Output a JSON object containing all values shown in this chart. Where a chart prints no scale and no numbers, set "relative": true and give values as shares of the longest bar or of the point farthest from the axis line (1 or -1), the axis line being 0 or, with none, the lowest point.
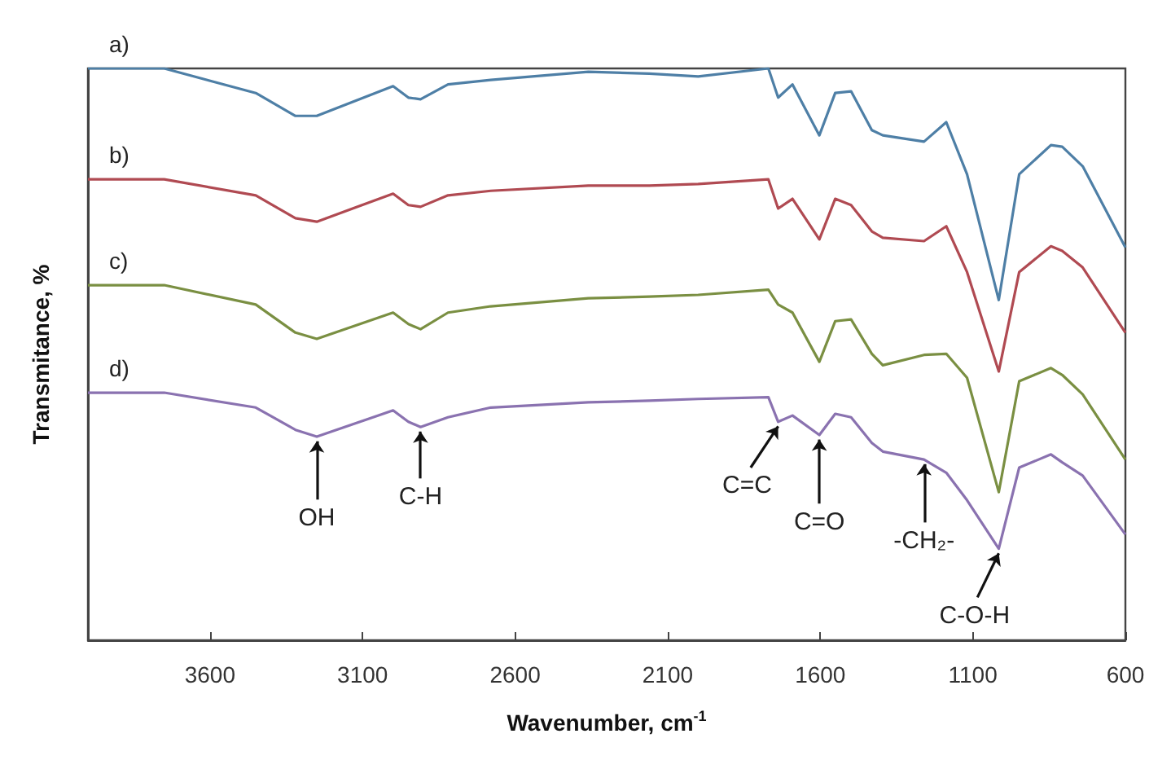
{
  "chart_data": {
    "type": "line",
    "relative": true,
    "xlabel": "Wavenumber, cm$^{-1}$",
    "ylabel": "Transmitance, %",
    "xlim": [
      4000,
      600
    ],
    "xticks": [
      3600,
      3100,
      2600,
      2100,
      1600,
      1100,
      600
    ],
    "x": [
      4000,
      3750,
      3450,
      3320,
      3250,
      3000,
      2950,
      2910,
      2820,
      2680,
      2360,
      2160,
      2000,
      1770,
      1738,
      1691,
      1603,
      1551,
      1499,
      1431,
      1395,
      1260,
      1187,
      1119,
      1015,
      948,
      844,
      807,
      740,
      600
    ],
    "series": [
      {
        "name": "a)",
        "color": "#4e7fa6",
        "values": [
          1.0,
          1.0,
          0.957,
          0.917,
          0.917,
          0.969,
          0.949,
          0.946,
          0.972,
          0.98,
          0.994,
          0.991,
          0.986,
          1.0,
          0.949,
          0.972,
          0.883,
          0.957,
          0.96,
          0.892,
          0.883,
          0.872,
          0.906,
          0.815,
          0.595,
          0.815,
          0.866,
          0.863,
          0.829,
          0.687
        ]
      },
      {
        "name": "b)",
        "color": "#b04a52",
        "values": [
          0.806,
          0.806,
          0.778,
          0.738,
          0.732,
          0.781,
          0.761,
          0.758,
          0.778,
          0.786,
          0.795,
          0.795,
          0.798,
          0.806,
          0.755,
          0.772,
          0.701,
          0.772,
          0.761,
          0.715,
          0.704,
          0.698,
          0.724,
          0.644,
          0.47,
          0.644,
          0.689,
          0.681,
          0.652,
          0.538
        ]
      },
      {
        "name": "c)",
        "color": "#7a8f42",
        "values": [
          0.621,
          0.621,
          0.587,
          0.538,
          0.527,
          0.573,
          0.553,
          0.544,
          0.573,
          0.584,
          0.598,
          0.601,
          0.604,
          0.613,
          0.587,
          0.573,
          0.487,
          0.558,
          0.561,
          0.501,
          0.481,
          0.499,
          0.501,
          0.459,
          0.259,
          0.453,
          0.476,
          0.464,
          0.43,
          0.316
        ]
      },
      {
        "name": "d)",
        "color": "#8a72b0",
        "values": [
          0.433,
          0.433,
          0.407,
          0.368,
          0.356,
          0.402,
          0.382,
          0.373,
          0.39,
          0.407,
          0.416,
          0.419,
          0.422,
          0.425,
          0.382,
          0.393,
          0.359,
          0.396,
          0.39,
          0.345,
          0.33,
          0.316,
          0.293,
          0.245,
          0.16,
          0.302,
          0.325,
          0.311,
          0.288,
          0.185
        ]
      }
    ],
    "annotations": [
      {
        "text": "OH",
        "x": 3250,
        "y": 0.356
      },
      {
        "text": "C-H",
        "x": 2910,
        "y": 0.373
      },
      {
        "text": "C=C",
        "x": 1738,
        "y": 0.382
      },
      {
        "text": "C=O",
        "x": 1603,
        "y": 0.359
      },
      {
        "text": "-CH₂-",
        "x": 1260,
        "y": 0.316
      },
      {
        "text": "C-O-H",
        "x": 1015,
        "y": 0.16
      }
    ]
  }
}
